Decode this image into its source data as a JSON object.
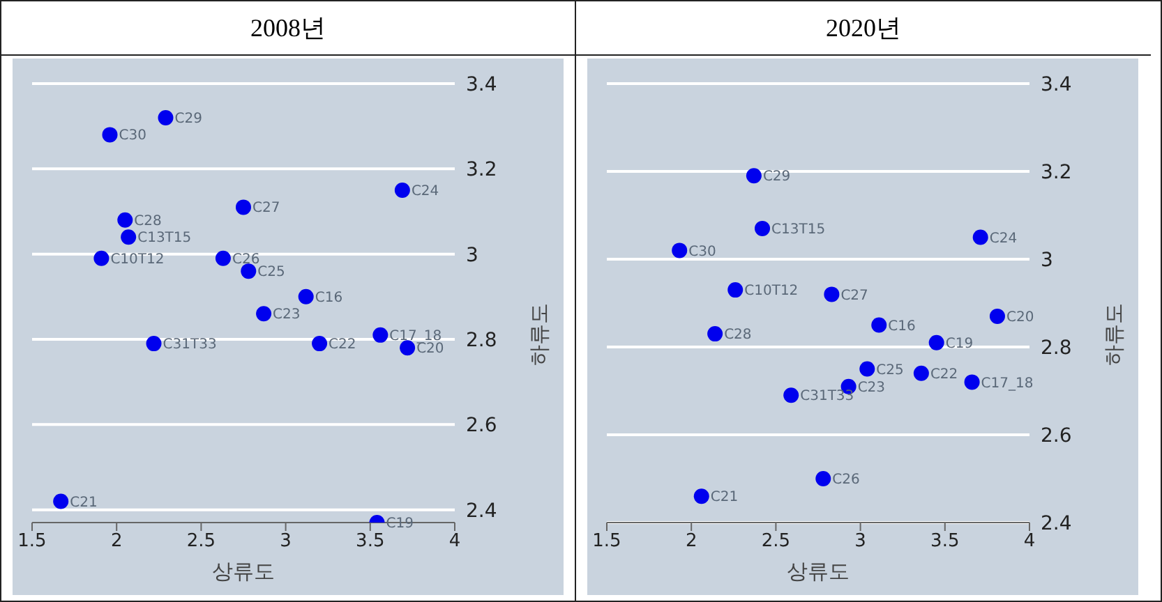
{
  "chart_data": [
    {
      "type": "scatter",
      "title": "2008년",
      "xlabel": "상류도",
      "ylabel": "하류도",
      "xlim": [
        1.5,
        4
      ],
      "xticks": [
        1.5,
        2,
        2.5,
        3,
        3.5,
        4
      ],
      "ylim": [
        2.37,
        3.4
      ],
      "yticks": [
        2.4,
        2.6,
        2.8,
        3,
        3.2,
        3.4
      ],
      "grid": "y",
      "marker": "circle",
      "series": [
        {
          "color": "#0000ee",
          "x": [
            2.29,
            1.96,
            3.69,
            2.75,
            2.05,
            2.07,
            1.91,
            2.63,
            2.78,
            3.12,
            2.87,
            3.56,
            2.22,
            3.2,
            3.72,
            1.67,
            3.54
          ],
          "values": [
            3.32,
            3.28,
            3.15,
            3.11,
            3.08,
            3.04,
            2.99,
            2.99,
            2.96,
            2.9,
            2.86,
            2.81,
            2.79,
            2.79,
            2.78,
            2.42,
            2.37
          ],
          "value_labels": [
            "C29",
            "C30",
            "C24",
            "C27",
            "C28",
            "C13T15",
            "C10T12",
            "C26",
            "C25",
            "C16",
            "C23",
            "C17_18",
            "C31T33",
            "C22",
            "C20",
            "C21",
            "C19"
          ]
        }
      ]
    },
    {
      "type": "scatter",
      "title": "2020년",
      "xlabel": "상류도",
      "ylabel": "하류도",
      "xlim": [
        1.5,
        4
      ],
      "xticks": [
        1.5,
        2,
        2.5,
        3,
        3.5,
        4
      ],
      "ylim": [
        2.4,
        3.4
      ],
      "yticks": [
        2.4,
        2.6,
        2.8,
        3,
        3.2,
        3.4
      ],
      "grid": "y",
      "marker": "circle",
      "series": [
        {
          "color": "#0000ee",
          "x": [
            2.37,
            2.42,
            3.71,
            1.93,
            2.26,
            2.83,
            3.81,
            3.11,
            2.14,
            3.45,
            3.04,
            3.36,
            3.66,
            2.93,
            2.59,
            2.78,
            2.06
          ],
          "values": [
            3.19,
            3.07,
            3.05,
            3.02,
            2.93,
            2.92,
            2.87,
            2.85,
            2.83,
            2.81,
            2.75,
            2.74,
            2.72,
            2.71,
            2.69,
            2.5,
            2.46
          ],
          "value_labels": [
            "C29",
            "C13T15",
            "C24",
            "C30",
            "C10T12",
            "C27",
            "C20",
            "C16",
            "C28",
            "C19",
            "C25",
            "C22",
            "C17_18",
            "C23",
            "C31T33",
            "C26",
            "C21"
          ]
        }
      ]
    }
  ]
}
